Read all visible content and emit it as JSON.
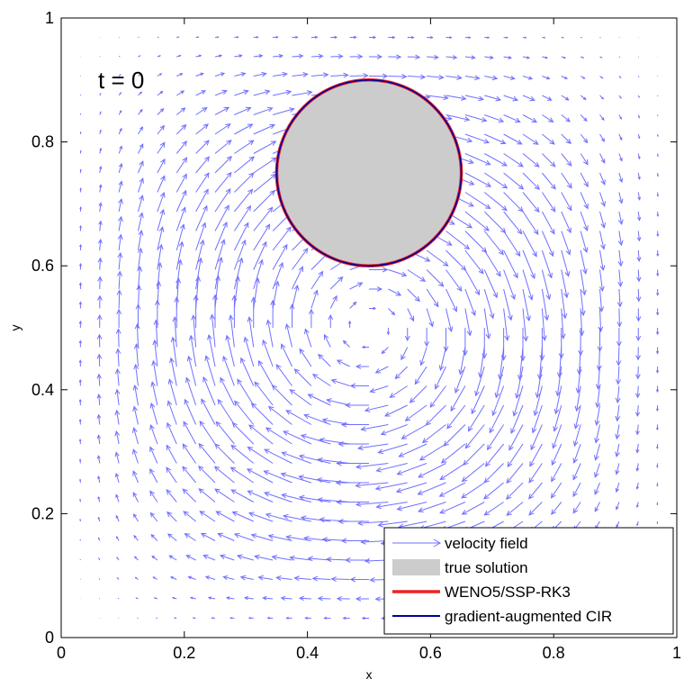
{
  "chart_data": {
    "type": "quiver",
    "xlabel": "x",
    "ylabel": "y",
    "xlim": [
      0,
      1
    ],
    "ylim": [
      0,
      1
    ],
    "xticks": [
      {
        "value": 0,
        "label": "0"
      },
      {
        "value": 0.2,
        "label": "0.2"
      },
      {
        "value": 0.4,
        "label": "0.4"
      },
      {
        "value": 0.6,
        "label": "0.6"
      },
      {
        "value": 0.8,
        "label": "0.8"
      },
      {
        "value": 1,
        "label": "1"
      }
    ],
    "yticks": [
      {
        "value": 0,
        "label": "0"
      },
      {
        "value": 0.2,
        "label": "0.2"
      },
      {
        "value": 0.4,
        "label": "0.4"
      },
      {
        "value": 0.6,
        "label": "0.6"
      },
      {
        "value": 0.8,
        "label": "0.8"
      },
      {
        "value": 1,
        "label": "1"
      }
    ],
    "annotation": {
      "text": "t = 0",
      "x": 0.06,
      "y": 0.9
    },
    "velocity_field": {
      "grid_start": 0.03125,
      "grid_step": 0.03125,
      "grid_count": 31,
      "color": "#7070ff"
    },
    "circle": {
      "center": [
        0.5,
        0.75
      ],
      "radius": 0.15,
      "fill": "#cccccc"
    },
    "series": [
      {
        "name": "velocity field",
        "color": "#7070ff",
        "kind": "arrow"
      },
      {
        "name": "true solution",
        "color": "#cccccc",
        "kind": "patch"
      },
      {
        "name": "WENO5/SSP-RK3",
        "color": "#ee2222",
        "kind": "line"
      },
      {
        "name": "gradient-augmented CIR",
        "color": "#000099",
        "kind": "line"
      }
    ],
    "legend_position": "bottom-right",
    "grid": false
  }
}
